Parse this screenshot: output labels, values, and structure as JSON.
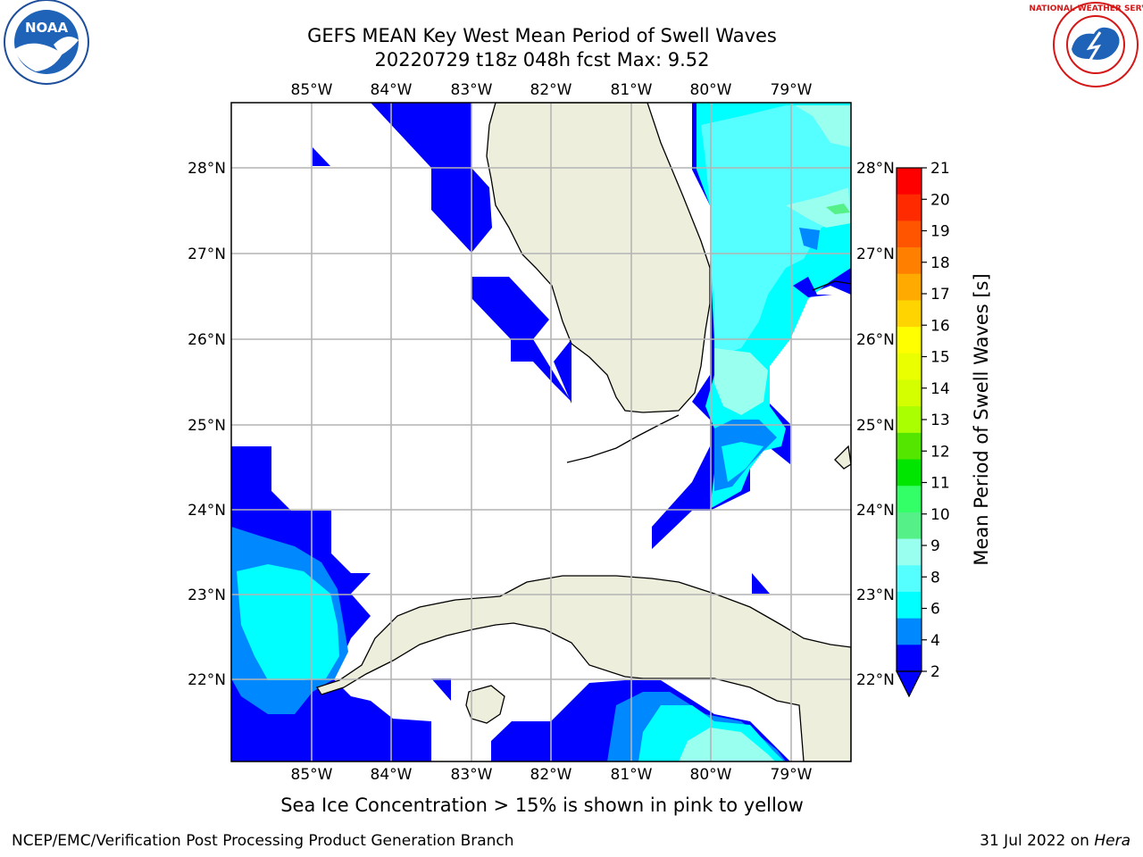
{
  "title": {
    "line1": "GEFS MEAN Key West Mean Period of Swell Waves",
    "line2": "20220729 t18z 048h fcst   Max: 9.52"
  },
  "map": {
    "lon_ticks": [
      "85°W",
      "84°W",
      "83°W",
      "82°W",
      "81°W",
      "80°W",
      "79°W"
    ],
    "lat_ticks": [
      "28°N",
      "27°N",
      "26°N",
      "25°N",
      "24°N",
      "23°N",
      "22°N"
    ],
    "land_color": "#eeeedc",
    "grid_color": "#b4b4b4"
  },
  "colorbar": {
    "label": "Mean Period of Swell Waves [s]",
    "ticks": [
      "21",
      "20",
      "19",
      "18",
      "17",
      "16",
      "15",
      "14",
      "13",
      "12",
      "11",
      "10",
      "9",
      "8",
      "6",
      "4",
      "2"
    ],
    "colors": [
      "#ff0000",
      "#ff2a00",
      "#ff5500",
      "#ff8000",
      "#ffaa00",
      "#ffd400",
      "#ffff00",
      "#eaff00",
      "#d4ff00",
      "#aaff00",
      "#55e600",
      "#00e600",
      "#33ff66",
      "#55f088",
      "#99ffee",
      "#55ffff",
      "#00ffff",
      "#0088ff",
      "#0000ff"
    ]
  },
  "note": "Sea Ice Concentration > 15% is shown in pink to yellow",
  "footer": {
    "left": "NCEP/EMC/Verification Post Processing Product Generation Branch",
    "right_date": "31 Jul 2022 on",
    "right_host": "Hera"
  },
  "logos": {
    "left": "noaa-logo",
    "right": "nws-logo",
    "noaa_text": "NOAA",
    "nws_text": "NATIONAL WEATHER SERVICE"
  }
}
